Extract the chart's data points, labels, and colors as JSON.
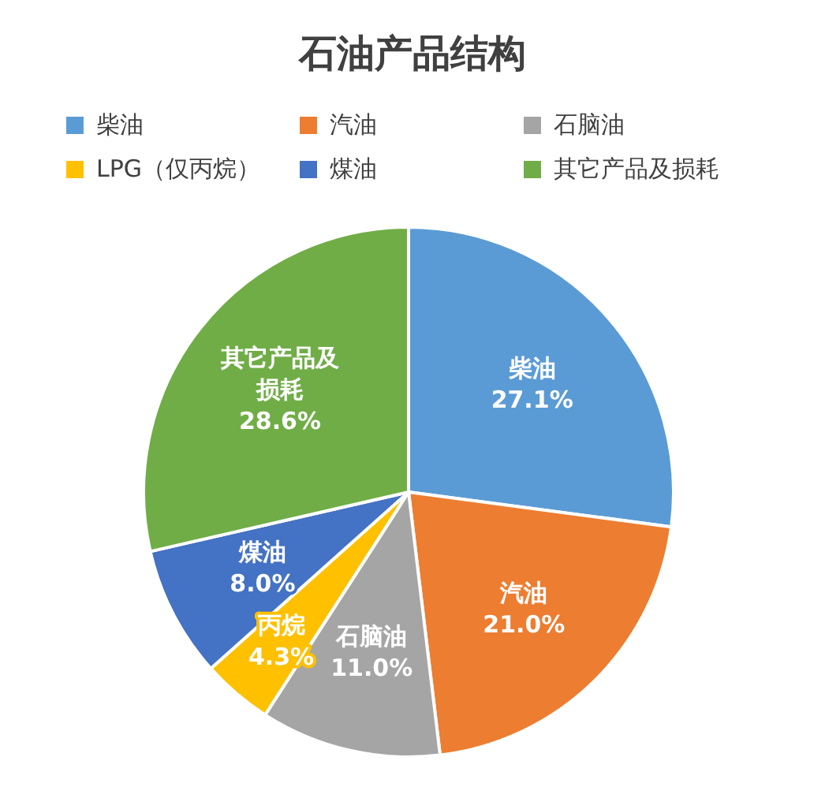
{
  "chart_data": {
    "type": "pie",
    "title": "石油产品结构",
    "legend": "top",
    "categories": [
      "柴油",
      "汽油",
      "石脑油",
      "LPG（仅丙烷）",
      "煤油",
      "其它产品及损耗"
    ],
    "values": [
      27.1,
      21.0,
      11.0,
      4.3,
      8.0,
      28.6
    ],
    "colors": [
      "#5b9bd5",
      "#ed7d31",
      "#a5a5a5",
      "#ffc000",
      "#4472c4",
      "#70ad47"
    ],
    "value_labels": [
      "柴油\n27.1%",
      "汽油\n21.0%",
      "石脑油\n11.0%",
      "丙烷\n4.3%",
      "煤油\n8.0%",
      "其它产品及损耗\n28.6%"
    ]
  }
}
